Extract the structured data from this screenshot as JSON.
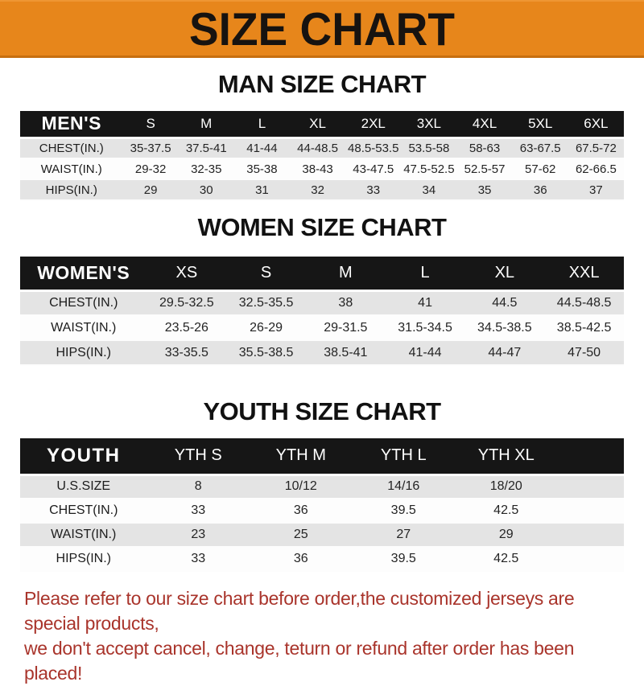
{
  "banner": {
    "title": "SIZE CHART",
    "bg_color": "#E7861B",
    "text_color": "#171310"
  },
  "chart_data": [
    {
      "type": "table",
      "title": "MAN SIZE CHART",
      "header_label": "MEN'S",
      "columns": [
        "S",
        "M",
        "L",
        "XL",
        "2XL",
        "3XL",
        "4XL",
        "5XL",
        "6XL"
      ],
      "rows": [
        {
          "label": "CHEST(IN.)",
          "values": [
            "35-37.5",
            "37.5-41",
            "41-44",
            "44-48.5",
            "48.5-53.5",
            "53.5-58",
            "58-63",
            "63-67.5",
            "67.5-72"
          ]
        },
        {
          "label": "WAIST(IN.)",
          "values": [
            "29-32",
            "32-35",
            "35-38",
            "38-43",
            "43-47.5",
            "47.5-52.5",
            "52.5-57",
            "57-62",
            "62-66.5"
          ]
        },
        {
          "label": "HIPS(IN.)",
          "values": [
            "29",
            "30",
            "31",
            "32",
            "33",
            "34",
            "35",
            "36",
            "37"
          ]
        }
      ],
      "header_bg": "#161616",
      "stripe_bg": "#E4E4E4"
    },
    {
      "type": "table",
      "title": "WOMEN SIZE CHART",
      "header_label": "WOMEN'S",
      "columns": [
        "XS",
        "S",
        "M",
        "L",
        "XL",
        "XXL"
      ],
      "rows": [
        {
          "label": "CHEST(IN.)",
          "values": [
            "29.5-32.5",
            "32.5-35.5",
            "38",
            "41",
            "44.5",
            "44.5-48.5"
          ]
        },
        {
          "label": "WAIST(IN.)",
          "values": [
            "23.5-26",
            "26-29",
            "29-31.5",
            "31.5-34.5",
            "34.5-38.5",
            "38.5-42.5"
          ]
        },
        {
          "label": "HIPS(IN.)",
          "values": [
            "33-35.5",
            "35.5-38.5",
            "38.5-41",
            "41-44",
            "44-47",
            "47-50"
          ]
        }
      ],
      "header_bg": "#161616",
      "stripe_bg": "#E4E4E4"
    },
    {
      "type": "table",
      "title": "YOUTH SIZE CHART",
      "header_label": "YOUTH",
      "columns": [
        "YTH S",
        "YTH M",
        "YTH L",
        "YTH XL"
      ],
      "rows": [
        {
          "label": "U.S.SIZE",
          "values": [
            "8",
            "10/12",
            "14/16",
            "18/20"
          ]
        },
        {
          "label": "CHEST(IN.)",
          "values": [
            "33",
            "36",
            "39.5",
            "42.5"
          ]
        },
        {
          "label": "WAIST(IN.)",
          "values": [
            "23",
            "25",
            "27",
            "29"
          ]
        },
        {
          "label": "HIPS(IN.)",
          "values": [
            "33",
            "36",
            "39.5",
            "42.5"
          ]
        }
      ],
      "header_bg": "#161616",
      "stripe_bg": "#E4E4E4"
    }
  ],
  "footer": {
    "lines": [
      "Please refer to our size chart before order,the customized jerseys are special products,",
      "we don't accept cancel, change, teturn or refund after order has been placed!"
    ],
    "text_color": "#A9342B"
  }
}
